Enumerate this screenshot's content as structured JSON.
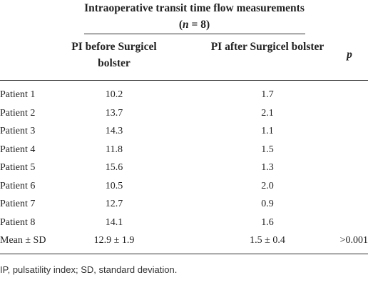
{
  "header": {
    "group": [
      "Intraoperative transit time flow measurements (",
      "n",
      " = 8)"
    ],
    "columns": [
      "PI before Surgicel bolster",
      "PI after Surgicel bolster",
      "p"
    ]
  },
  "table": {
    "rows": [
      [
        "Patient 1",
        "10.2",
        "1.7",
        ""
      ],
      [
        "Patient 2",
        "13.7",
        "2.1",
        ""
      ],
      [
        "Patient 3",
        "14.3",
        "1.1",
        ""
      ],
      [
        "Patient 4",
        "11.8",
        "1.5",
        ""
      ],
      [
        "Patient 5",
        "15.6",
        "1.3",
        ""
      ],
      [
        "Patient 6",
        "10.5",
        "2.0",
        ""
      ],
      [
        "Patient 7",
        "12.7",
        "0.9",
        ""
      ],
      [
        "Patient 8",
        "14.1",
        "1.6",
        ""
      ],
      [
        "Mean ± SD",
        "12.9 ± 1.9",
        "1.5 ± 0.4",
        ">0.001"
      ]
    ]
  },
  "footnote": "IP, pulsatility index; SD, standard deviation."
}
